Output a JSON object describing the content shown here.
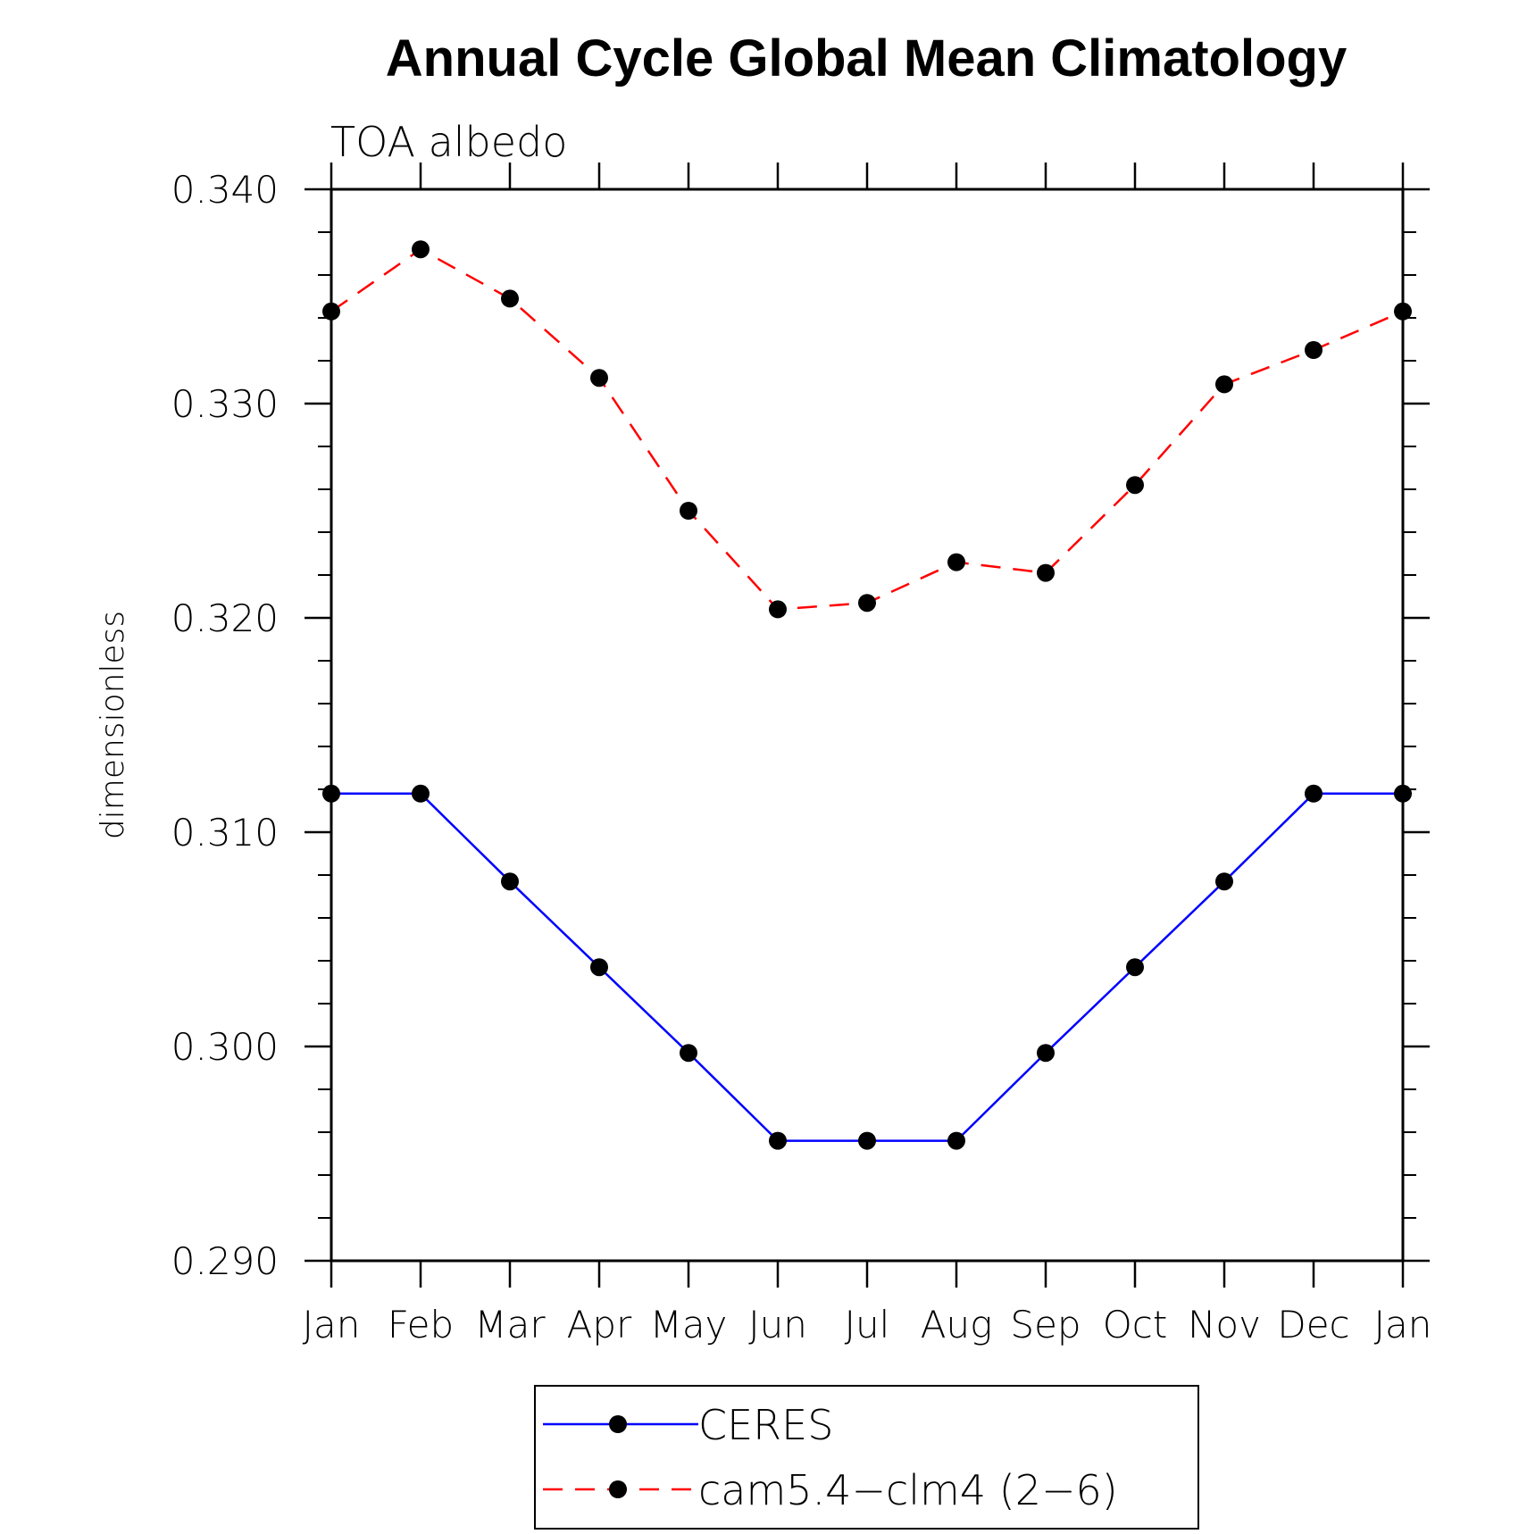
{
  "chart_data": {
    "type": "line",
    "title": "Annual Cycle Global Mean Climatology",
    "subtitle": "TOA albedo",
    "xlabel": "",
    "ylabel": "dimensionless",
    "categories": [
      "Jan",
      "Feb",
      "Mar",
      "Apr",
      "May",
      "Jun",
      "Jul",
      "Aug",
      "Sep",
      "Oct",
      "Nov",
      "Dec",
      "Jan"
    ],
    "ylim": [
      0.29,
      0.34
    ],
    "yticks": [
      0.29,
      0.3,
      0.31,
      0.32,
      0.33,
      0.34
    ],
    "ytick_labels": [
      "0.290",
      "0.300",
      "0.310",
      "0.320",
      "0.330",
      "0.340"
    ],
    "y_minor_step": 0.002,
    "grid": false,
    "legend_position": "bottom-center",
    "series": [
      {
        "name": "CERES",
        "color": "#0000ff",
        "line_style": "solid",
        "marker_color": "#000000",
        "values": [
          0.3118,
          0.3118,
          0.3077,
          0.3037,
          0.2997,
          0.2956,
          0.2956,
          0.2956,
          0.2997,
          0.3037,
          0.3077,
          0.3118,
          0.3118
        ]
      },
      {
        "name": "cam5.4−clm4 (2−6)",
        "color": "#ff0000",
        "line_style": "dashed",
        "marker_color": "#000000",
        "values": [
          0.3343,
          0.3372,
          0.3349,
          0.3312,
          0.325,
          0.3204,
          0.3207,
          0.3226,
          0.3221,
          0.3262,
          0.3309,
          0.3325,
          0.3343
        ]
      }
    ]
  }
}
